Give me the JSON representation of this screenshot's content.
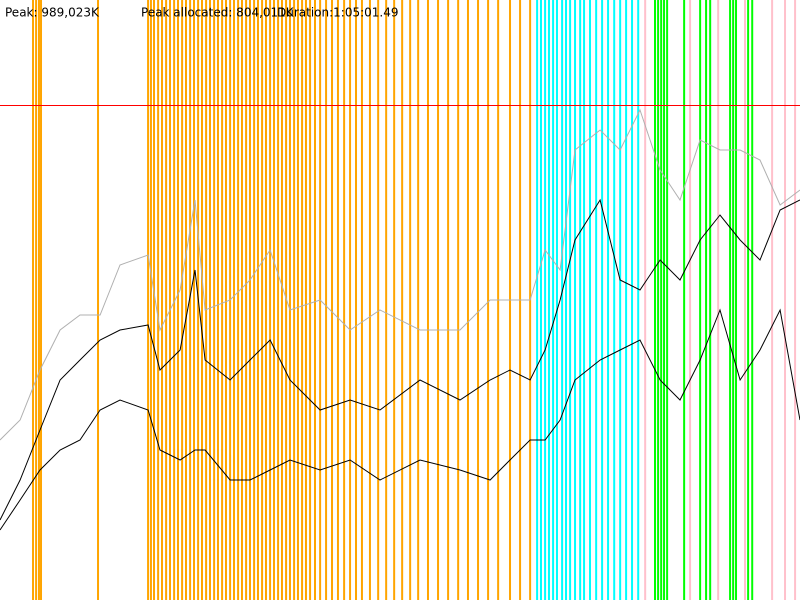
{
  "chart_data": {
    "type": "line",
    "peak": {
      "value": 989023,
      "label": "Peak: 989,023K"
    },
    "peak_allocated": "Peak allocated: 804,011K",
    "duration": "Duration:1:05:01.49",
    "peak_color": "#ff0000",
    "xlim": [
      0,
      3901
    ],
    "ylim": [
      0,
      1200000
    ],
    "x": [
      0,
      98,
      195,
      293,
      390,
      488,
      585,
      722,
      780,
      878,
      951,
      1000,
      1122,
      1219,
      1317,
      1414,
      1561,
      1707,
      1853,
      2048,
      2243,
      2390,
      2487,
      2585,
      2658,
      2731,
      2804,
      2926,
      3024,
      3121,
      3219,
      3316,
      3414,
      3511,
      3609,
      3706,
      3804,
      3901
    ],
    "series": [
      {
        "color": "#b0b0b0",
        "values": [
          320000,
          360000,
          460000,
          540000,
          570000,
          570000,
          670000,
          690000,
          540000,
          620000,
          800000,
          580000,
          600000,
          640000,
          700000,
          580000,
          600000,
          540000,
          580000,
          540000,
          540000,
          600000,
          600000,
          600000,
          700000,
          660000,
          900000,
          940000,
          900000,
          980000,
          860000,
          800000,
          920000,
          900000,
          900000,
          880000,
          790000,
          820000
        ]
      },
      {
        "color": "#000000",
        "values": [
          160000,
          240000,
          340000,
          440000,
          480000,
          520000,
          540000,
          550000,
          460000,
          500000,
          660000,
          480000,
          440000,
          480000,
          520000,
          440000,
          380000,
          400000,
          380000,
          440000,
          400000,
          440000,
          460000,
          440000,
          500000,
          600000,
          720000,
          800000,
          640000,
          620000,
          680000,
          640000,
          720000,
          770000,
          720000,
          680000,
          780000,
          800000
        ]
      },
      {
        "color": "#000000",
        "values": [
          140000,
          200000,
          260000,
          300000,
          320000,
          380000,
          400000,
          380000,
          300000,
          280000,
          300000,
          300000,
          240000,
          240000,
          260000,
          280000,
          260000,
          280000,
          240000,
          280000,
          260000,
          240000,
          280000,
          320000,
          320000,
          360000,
          440000,
          480000,
          500000,
          520000,
          440000,
          400000,
          480000,
          580000,
          440000,
          500000,
          580000,
          360000
        ]
      }
    ],
    "events": [
      {
        "color": "#ffa500",
        "x": [
          161,
          176,
          190,
          200,
          478,
          722,
          736,
          751,
          771,
          790,
          810,
          829,
          849,
          868,
          888,
          907,
          927,
          946,
          966,
          985,
          1005,
          1024,
          1044,
          1063,
          1083,
          1102,
          1122,
          1141,
          1161,
          1180,
          1200,
          1219,
          1239,
          1258,
          1278,
          1297,
          1317,
          1336,
          1356,
          1375,
          1395,
          1414,
          1434,
          1453,
          1473,
          1492,
          1512,
          1536,
          1561,
          1590,
          1619,
          1648,
          1678,
          1707,
          1736,
          1765,
          1804,
          1844,
          1883,
          1922,
          1961,
          2000,
          2039,
          2087,
          2136,
          2185,
          2234,
          2282,
          2331,
          2380,
          2429,
          2487,
          2536,
          2585
        ]
      },
      {
        "color": "#00ffff",
        "x": [
          2619,
          2638,
          2658,
          2677,
          2697,
          2716,
          2741,
          2760,
          2780,
          2804,
          2829,
          2848,
          2877,
          2907,
          2936,
          2965,
          2995,
          3024,
          3053,
          3082,
          3112
        ]
      },
      {
        "color": "#00ff00",
        "x": [
          3194,
          3209,
          3224,
          3238,
          3253,
          3336,
          3414,
          3443,
          3463,
          3560,
          3575,
          3589,
          3648,
          3668
        ]
      },
      {
        "color": "#ffc0cb",
        "x": [
          3146,
          3365,
          3502,
          3633,
          3765,
          3828,
          3877
        ]
      }
    ]
  }
}
